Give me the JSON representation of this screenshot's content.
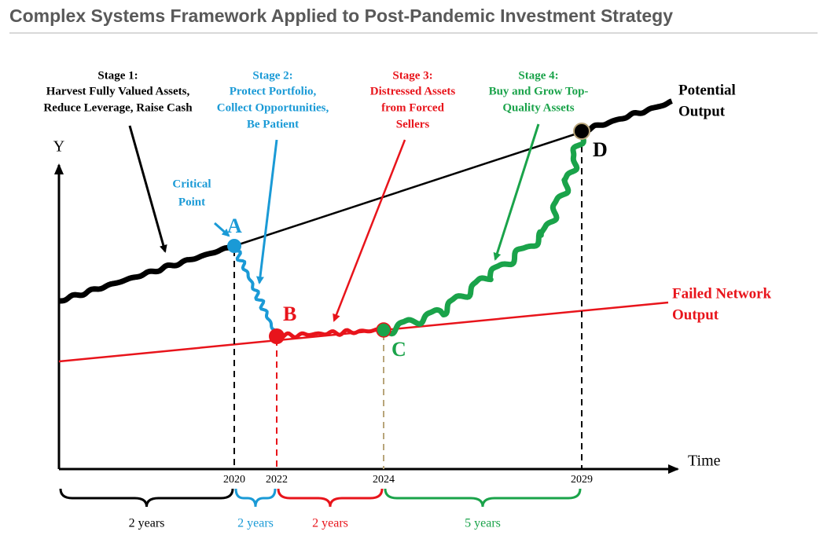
{
  "title": "Complex Systems Framework Applied to Post-Pandemic Investment Strategy",
  "axes": {
    "y": "Y",
    "x": "Time"
  },
  "stages": [
    {
      "heading": "Stage 1:",
      "lines": [
        "Harvest Fully Valued Assets,",
        "Reduce Leverage, Raise Cash"
      ]
    },
    {
      "heading": "Stage 2:",
      "lines": [
        "Protect Portfolio,",
        "Collect Opportunities,",
        "Be Patient"
      ]
    },
    {
      "heading": "Stage 3:",
      "lines": [
        "Distressed Assets",
        "from Forced",
        "Sellers"
      ]
    },
    {
      "heading": "Stage 4:",
      "lines": [
        "Buy and Grow Top-",
        "Quality Assets"
      ]
    }
  ],
  "annotation": [
    "Critical",
    "Point"
  ],
  "points": [
    "A",
    "B",
    "C",
    "D"
  ],
  "curves": {
    "potential": [
      "Potential",
      "Output"
    ],
    "failed": [
      "Failed Network",
      "Output"
    ]
  },
  "years": [
    "2020",
    "2022",
    "2024",
    "2029"
  ],
  "durations": [
    "2 years",
    "2 years",
    "2 years",
    "5 years"
  ]
}
